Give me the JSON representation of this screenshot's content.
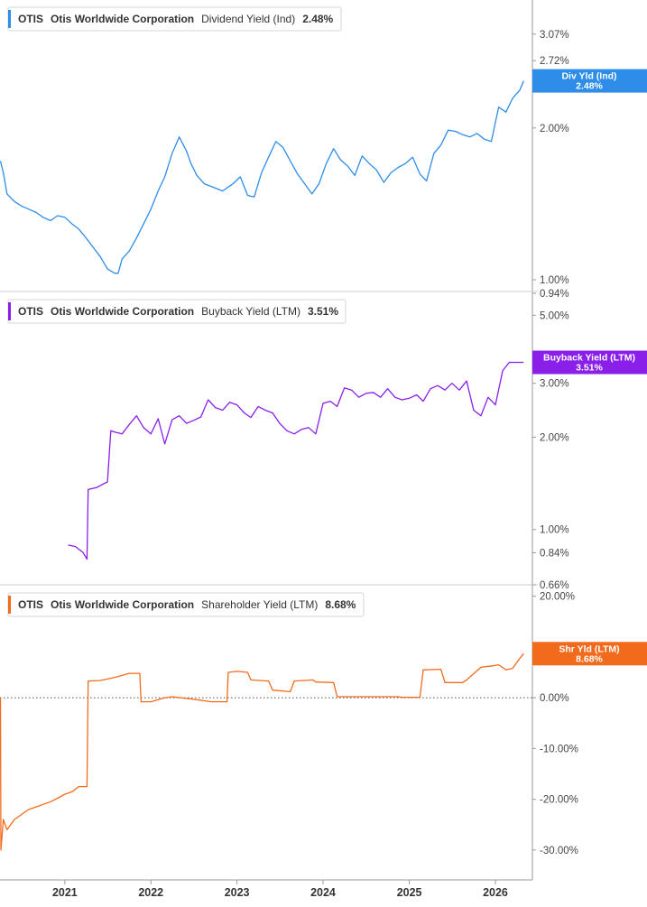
{
  "chart_data": [
    {
      "type": "line",
      "ticker": "OTIS",
      "company": "Otis Worldwide Corporation",
      "metric": "Dividend Yield (Ind)",
      "last_value_label": "2.48%",
      "tag_lines": [
        "Div Yld (Ind)",
        "2.48%"
      ],
      "color": "#2E8DE8",
      "scale": "log",
      "ylim": [
        0.94,
        3.5
      ],
      "y_ticks": [
        {
          "value": 3.07,
          "label": "3.07%"
        },
        {
          "value": 2.72,
          "label": "2.72%"
        },
        {
          "value": 2.0,
          "label": "2.00%"
        },
        {
          "value": 1.0,
          "label": "1.00%"
        },
        {
          "value": 0.94,
          "label": "0.94%"
        }
      ],
      "x": [
        "2020-04-03",
        "2020-04-15",
        "2020-05-01",
        "2020-06-01",
        "2020-07-01",
        "2020-08-01",
        "2020-09-01",
        "2020-10-01",
        "2020-11-01",
        "2020-12-01",
        "2021-01-01",
        "2021-02-01",
        "2021-03-01",
        "2021-04-01",
        "2021-05-01",
        "2021-06-01",
        "2021-07-01",
        "2021-08-01",
        "2021-08-15",
        "2021-09-01",
        "2021-10-01",
        "2021-11-01",
        "2021-12-01",
        "2022-01-01",
        "2022-02-01",
        "2022-03-01",
        "2022-04-01",
        "2022-05-01",
        "2022-06-01",
        "2022-06-20",
        "2022-07-15",
        "2022-08-15",
        "2022-10-01",
        "2022-11-01",
        "2022-12-15",
        "2023-01-15",
        "2023-02-15",
        "2023-03-15",
        "2023-04-15",
        "2023-05-15",
        "2023-06-15",
        "2023-07-15",
        "2023-08-15",
        "2023-09-15",
        "2023-10-15",
        "2023-11-15",
        "2023-12-15",
        "2024-01-15",
        "2024-02-15",
        "2024-03-15",
        "2024-04-15",
        "2024-05-15",
        "2024-06-15",
        "2024-07-15",
        "2024-08-15",
        "2024-09-15",
        "2024-10-15",
        "2024-11-15",
        "2024-12-15",
        "2025-01-15",
        "2025-02-15",
        "2025-03-15",
        "2025-04-15",
        "2025-05-15",
        "2025-06-15",
        "2025-07-15",
        "2025-08-15",
        "2025-09-15",
        "2025-10-15",
        "2025-11-15",
        "2025-12-15",
        "2026-01-15",
        "2026-02-15",
        "2026-03-15",
        "2026-04-15",
        "2026-05-01"
      ],
      "values": [
        1.72,
        1.63,
        1.48,
        1.43,
        1.4,
        1.38,
        1.36,
        1.33,
        1.31,
        1.34,
        1.33,
        1.29,
        1.26,
        1.21,
        1.16,
        1.11,
        1.05,
        1.03,
        1.03,
        1.1,
        1.14,
        1.21,
        1.29,
        1.38,
        1.5,
        1.6,
        1.78,
        1.92,
        1.8,
        1.7,
        1.61,
        1.55,
        1.52,
        1.5,
        1.55,
        1.6,
        1.47,
        1.46,
        1.63,
        1.75,
        1.88,
        1.83,
        1.72,
        1.62,
        1.55,
        1.48,
        1.55,
        1.7,
        1.82,
        1.73,
        1.68,
        1.61,
        1.76,
        1.7,
        1.65,
        1.56,
        1.63,
        1.67,
        1.7,
        1.75,
        1.62,
        1.57,
        1.78,
        1.85,
        1.98,
        1.97,
        1.94,
        1.92,
        1.95,
        1.9,
        1.88,
        2.2,
        2.15,
        2.29,
        2.38,
        2.48
      ]
    },
    {
      "type": "line",
      "ticker": "OTIS",
      "company": "Otis Worldwide Corporation",
      "metric": "Buyback Yield (LTM)",
      "last_value_label": "3.51%",
      "tag_lines": [
        "Buyback Yield (LTM)",
        "3.51%"
      ],
      "color": "#8A1FEA",
      "scale": "log",
      "ylim": [
        0.66,
        5.7
      ],
      "y_ticks": [
        {
          "value": 5.0,
          "label": "5.00%"
        },
        {
          "value": 3.0,
          "label": "3.00%"
        },
        {
          "value": 2.0,
          "label": "2.00%"
        },
        {
          "value": 1.0,
          "label": "1.00%"
        },
        {
          "value": 0.84,
          "label": "0.84%"
        },
        {
          "value": 0.66,
          "label": "0.66%"
        }
      ],
      "x": [
        "2021-01-15",
        "2021-02-15",
        "2021-03-20",
        "2021-04-05",
        "2021-04-10",
        "2021-05-15",
        "2021-06-15",
        "2021-07-01",
        "2021-07-15",
        "2021-08-01",
        "2021-09-01",
        "2021-10-01",
        "2021-11-01",
        "2021-12-01",
        "2022-01-01",
        "2022-02-01",
        "2022-03-01",
        "2022-04-01",
        "2022-05-01",
        "2022-06-01",
        "2022-07-01",
        "2022-08-01",
        "2022-09-01",
        "2022-10-01",
        "2022-11-01",
        "2022-12-01",
        "2023-01-01",
        "2023-02-01",
        "2023-03-01",
        "2023-04-01",
        "2023-05-01",
        "2023-06-01",
        "2023-07-01",
        "2023-08-01",
        "2023-09-01",
        "2023-10-01",
        "2023-11-01",
        "2023-12-01",
        "2024-01-01",
        "2024-02-01",
        "2024-03-01",
        "2024-04-01",
        "2024-05-01",
        "2024-06-01",
        "2024-07-01",
        "2024-08-01",
        "2024-09-01",
        "2024-10-01",
        "2024-11-01",
        "2024-12-01",
        "2025-01-01",
        "2025-02-01",
        "2025-03-01",
        "2025-04-01",
        "2025-05-01",
        "2025-06-01",
        "2025-07-01",
        "2025-08-01",
        "2025-09-01",
        "2025-10-01",
        "2025-11-01",
        "2025-12-01",
        "2026-01-01",
        "2026-02-01",
        "2026-03-01",
        "2026-04-01",
        "2026-05-01"
      ],
      "values": [
        0.89,
        0.88,
        0.84,
        0.8,
        1.35,
        1.37,
        1.41,
        1.43,
        2.1,
        2.08,
        2.05,
        2.2,
        2.35,
        2.15,
        2.05,
        2.3,
        1.9,
        2.28,
        2.35,
        2.22,
        2.27,
        2.33,
        2.65,
        2.5,
        2.45,
        2.6,
        2.55,
        2.4,
        2.32,
        2.52,
        2.45,
        2.4,
        2.22,
        2.1,
        2.05,
        2.12,
        2.15,
        2.05,
        2.58,
        2.62,
        2.52,
        2.9,
        2.85,
        2.7,
        2.78,
        2.8,
        2.7,
        2.88,
        2.7,
        2.65,
        2.68,
        2.75,
        2.62,
        2.88,
        2.95,
        2.85,
        3.0,
        2.85,
        3.05,
        2.45,
        2.35,
        2.7,
        2.55,
        3.3,
        3.51,
        3.51,
        3.51
      ]
    },
    {
      "type": "line",
      "ticker": "OTIS",
      "company": "Otis Worldwide Corporation",
      "metric": "Shareholder Yield (LTM)",
      "last_value_label": "8.68%",
      "tag_lines": [
        "Shr Yld (LTM)",
        "8.68%"
      ],
      "color": "#F26B1D",
      "scale": "linear",
      "ylim": [
        -35,
        21
      ],
      "y_ticks": [
        {
          "value": 20,
          "label": "20.00%"
        },
        {
          "value": 0,
          "label": "0.00%"
        },
        {
          "value": -10,
          "label": "-10.00%"
        },
        {
          "value": -20,
          "label": "-20.00%"
        },
        {
          "value": -30,
          "label": "-30.00%"
        }
      ],
      "zero_line": true,
      "x": [
        "2020-04-01",
        "2020-04-03",
        "2020-04-05",
        "2020-04-15",
        "2020-05-01",
        "2020-06-01",
        "2020-07-01",
        "2020-08-01",
        "2020-09-01",
        "2020-10-01",
        "2020-11-01",
        "2020-12-01",
        "2021-01-01",
        "2021-02-01",
        "2021-03-01",
        "2021-04-05",
        "2021-04-10",
        "2021-06-01",
        "2021-08-01",
        "2021-10-01",
        "2021-11-15",
        "2021-11-20",
        "2022-01-01",
        "2022-03-01",
        "2022-04-01",
        "2022-07-01",
        "2022-09-15",
        "2022-11-20",
        "2022-11-25",
        "2023-01-01",
        "2023-02-15",
        "2023-03-01",
        "2023-05-15",
        "2023-06-01",
        "2023-08-15",
        "2023-09-01",
        "2023-11-20",
        "2023-12-01",
        "2024-02-15",
        "2024-03-01",
        "2024-05-15",
        "2024-06-01",
        "2024-09-01",
        "2024-11-15",
        "2024-12-01",
        "2025-02-15",
        "2025-03-01",
        "2025-05-15",
        "2025-06-01",
        "2025-08-15",
        "2025-09-01",
        "2025-11-01",
        "2025-12-01",
        "2025-12-10",
        "2026-01-15",
        "2026-02-15",
        "2026-03-15",
        "2026-04-15",
        "2026-05-01"
      ],
      "values": [
        0,
        0,
        -30,
        -24,
        -26,
        -24,
        -23,
        -22,
        -21.5,
        -21,
        -20.5,
        -19.8,
        -19,
        -18.5,
        -17.5,
        -17.5,
        3.3,
        3.4,
        4.0,
        4.8,
        4.8,
        -0.8,
        -0.8,
        0,
        0.2,
        -0.3,
        -0.8,
        -0.8,
        5.0,
        5.2,
        5.0,
        3.5,
        3.3,
        1.5,
        1.2,
        3.3,
        3.5,
        3.1,
        3.0,
        0.2,
        0.2,
        0.2,
        0.2,
        0.2,
        0.1,
        0.1,
        5.5,
        5.6,
        3.0,
        3.0,
        3.5,
        6.0,
        6.2,
        6.2,
        6.5,
        5.5,
        5.8,
        7.8,
        8.68
      ]
    }
  ],
  "x_axis": {
    "tick_labels": [
      {
        "date": "2021-01-01",
        "label": "2021"
      },
      {
        "date": "2022-01-01",
        "label": "2022"
      },
      {
        "date": "2023-01-01",
        "label": "2023"
      },
      {
        "date": "2024-01-01",
        "label": "2024"
      },
      {
        "date": "2025-01-01",
        "label": "2025"
      },
      {
        "date": "2026-01-01",
        "label": "2026"
      }
    ],
    "range": [
      "2020-04-01",
      "2026-06-07"
    ]
  },
  "style": {
    "axis_color": "#9a9a9a",
    "text_color": "#333333",
    "tick_text_color": "#444444",
    "zero_line_color": "#555555"
  }
}
